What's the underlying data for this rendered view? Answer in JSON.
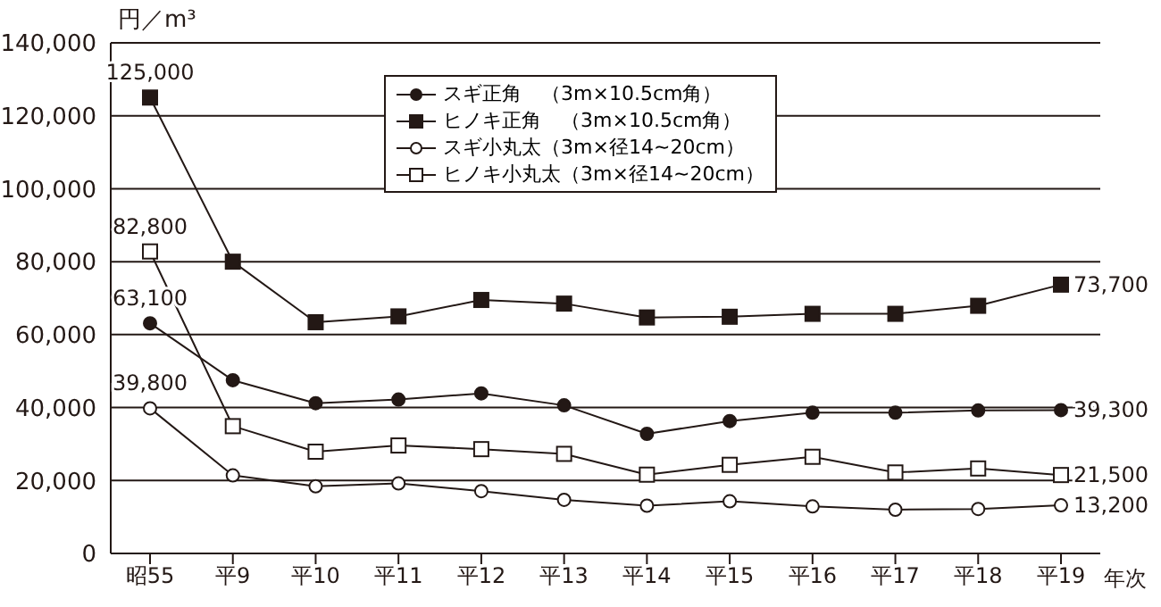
{
  "chart_data": {
    "type": "line",
    "ylabel": "円／m³",
    "xlabel": "年次",
    "categories": [
      "昭55",
      "平9",
      "平10",
      "平11",
      "平12",
      "平13",
      "平14",
      "平15",
      "平16",
      "平17",
      "平18",
      "平19"
    ],
    "series": [
      {
        "name": "スギ正角　（3m×10.5cm角）",
        "color": "#231815",
        "marker": "circle",
        "values": [
          63100,
          47500,
          41200,
          42200,
          43900,
          40600,
          32800,
          36300,
          38600,
          38600,
          39200,
          39300
        ],
        "value_labels": [
          "63,100",
          null,
          null,
          null,
          null,
          null,
          null,
          null,
          null,
          null,
          null,
          "39,300"
        ]
      },
      {
        "name": "ヒノキ正角　（3m×10.5cm角）",
        "color": "#231815",
        "marker": "square",
        "values": [
          125000,
          80000,
          63400,
          65000,
          69500,
          68500,
          64700,
          64900,
          65700,
          65700,
          67900,
          73700
        ],
        "value_labels": [
          "125,000",
          null,
          null,
          null,
          null,
          null,
          null,
          null,
          null,
          null,
          null,
          "73,700"
        ]
      },
      {
        "name": "スギ小丸太（3m×径14~20cm）",
        "color": "#231815",
        "marker": "circle-open",
        "values": [
          39800,
          21400,
          18400,
          19200,
          17100,
          14700,
          13100,
          14300,
          12900,
          12000,
          12200,
          13200
        ],
        "value_labels": [
          "39,800",
          null,
          null,
          null,
          null,
          null,
          null,
          null,
          null,
          null,
          null,
          "13,200"
        ]
      },
      {
        "name": "ヒノキ小丸太（3m×径14~20cm）",
        "color": "#231815",
        "marker": "square-open",
        "values": [
          82800,
          34900,
          27900,
          29600,
          28600,
          27300,
          21600,
          24300,
          26500,
          22200,
          23300,
          21500
        ],
        "value_labels": [
          "82,800",
          null,
          null,
          null,
          null,
          null,
          null,
          null,
          null,
          null,
          null,
          "21,500"
        ]
      }
    ],
    "ylim": [
      0,
      140000
    ],
    "yticks": [
      0,
      {
        "value": 20000,
        "label": "20,000"
      },
      {
        "value": 40000,
        "label": "40,000"
      },
      {
        "value": 60000,
        "label": "60,000"
      },
      {
        "value": 80000,
        "label": "80,000"
      },
      {
        "value": 100000,
        "label": "100,000"
      },
      {
        "value": 120000,
        "label": "120,000"
      },
      {
        "value": 140000,
        "label": "140,000"
      }
    ],
    "grid": "y",
    "legend": "top",
    "line_style": "solid"
  }
}
